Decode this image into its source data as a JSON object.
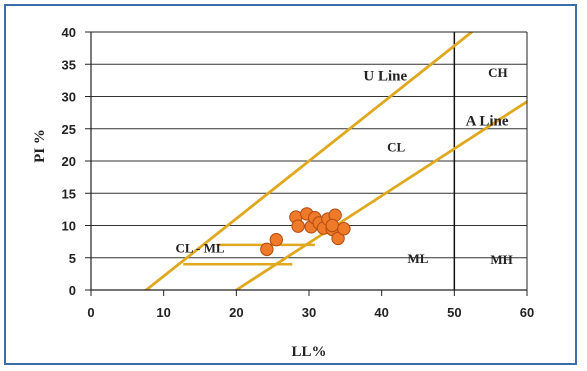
{
  "chart_data": {
    "type": "scatter",
    "title": "",
    "xlabel": "LL%",
    "ylabel": "PI %",
    "xlim": [
      0,
      60
    ],
    "ylim": [
      0,
      40
    ],
    "xticks": [
      "0",
      "10",
      "20",
      "30",
      "40",
      "50",
      "60"
    ],
    "yticks": [
      "0",
      "5",
      "10",
      "15",
      "20",
      "25",
      "30",
      "35",
      "40"
    ],
    "grid": "horizontal",
    "colors": {
      "line": "#e0a81e",
      "point": "#ef7a2a",
      "point_edge": "#b24a10",
      "grid": "#333333",
      "frame": "#3b6ea8"
    },
    "lines": [
      {
        "name": "U Line",
        "x": [
          7.6,
          52.4
        ],
        "y": [
          0,
          40
        ]
      },
      {
        "name": "A Line",
        "x": [
          20,
          60
        ],
        "y": [
          0,
          29.2
        ]
      }
    ],
    "reference_lines": [
      {
        "x": [
          50,
          50
        ],
        "y": [
          0,
          40
        ]
      },
      {
        "x": [
          12.7,
          27.7
        ],
        "y": [
          4,
          4
        ]
      },
      {
        "x": [
          17.3,
          30.8
        ],
        "y": [
          7,
          7
        ]
      }
    ],
    "zones": [
      {
        "label": "U Line",
        "x": 40.5,
        "y": 32.5,
        "size": "lg"
      },
      {
        "label": "CH",
        "x": 56,
        "y": 33,
        "size": "sm"
      },
      {
        "label": "A Line",
        "x": 54.5,
        "y": 25.5,
        "size": "lg"
      },
      {
        "label": "CL",
        "x": 42,
        "y": 21.5,
        "size": "sm"
      },
      {
        "label": "CL - ML",
        "x": 15,
        "y": 5.8,
        "size": "sm"
      },
      {
        "label": "ML",
        "x": 45,
        "y": 4.2,
        "size": "sm"
      },
      {
        "label": "MH",
        "x": 56.5,
        "y": 4,
        "size": "sm"
      }
    ],
    "series": [
      {
        "x": [
          24.2,
          25.5,
          28.2,
          28.5,
          29.7,
          30.3,
          30.8,
          31.4,
          32.0,
          32.6,
          33.2,
          33.6,
          33.2,
          34.0,
          34.8
        ],
        "y": [
          6.3,
          7.8,
          11.3,
          9.9,
          11.8,
          9.8,
          11.2,
          10.4,
          9.6,
          11.0,
          9.4,
          11.6,
          10.0,
          8.0,
          9.5
        ]
      }
    ]
  }
}
